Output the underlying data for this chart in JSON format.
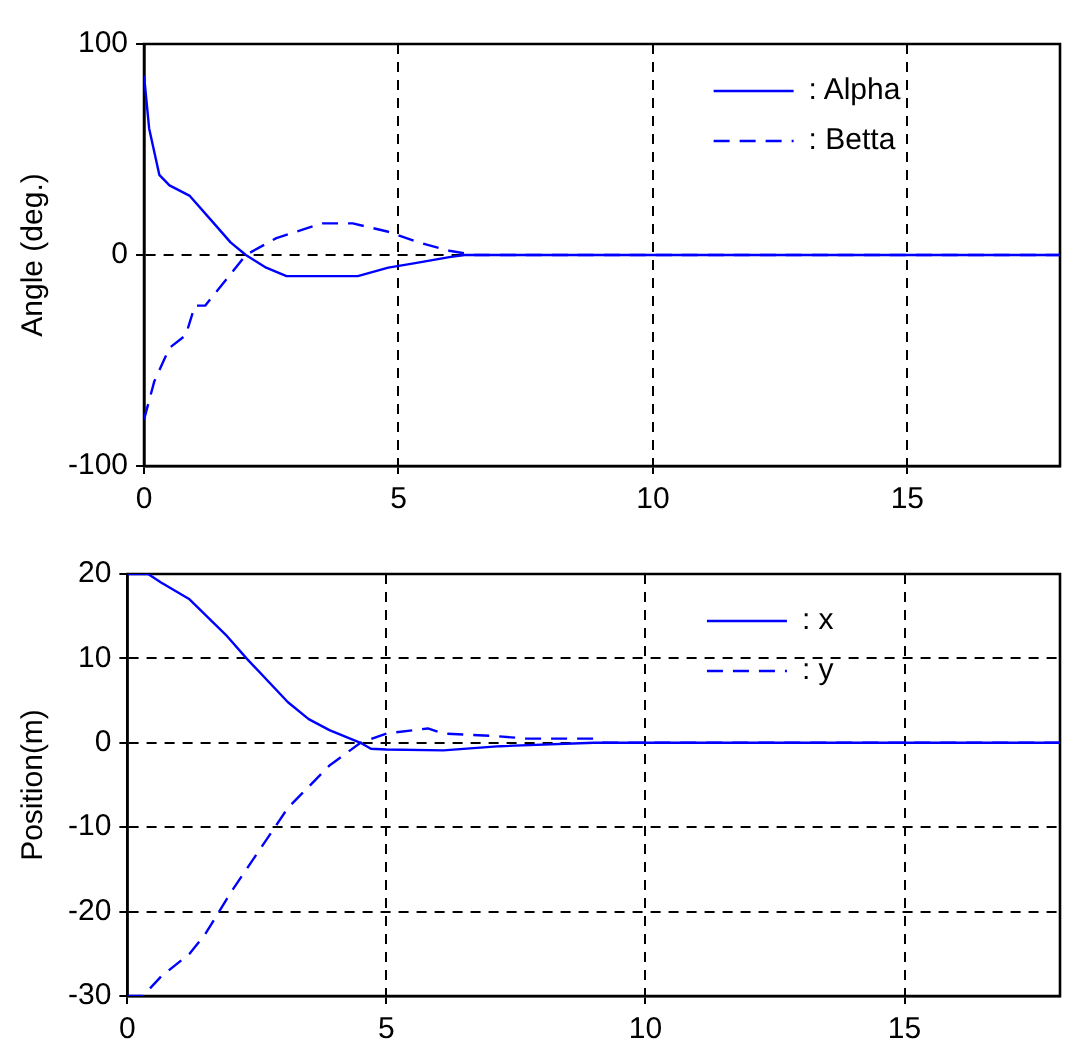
{
  "chart_data": [
    {
      "type": "line",
      "ylabel": "Angle (deg.)",
      "xlim": [
        0,
        18
      ],
      "xticks": [
        0,
        5,
        10,
        15
      ],
      "ylim": [
        -100,
        100
      ],
      "yticks": [
        -100,
        0,
        100
      ],
      "grid": true,
      "legend": "top right",
      "marker": "none",
      "series": [
        {
          "name": ": Alpha",
          "color": "#0000ff",
          "line_style": "solid",
          "x": [
            0,
            0.1,
            0.3,
            0.5,
            0.9,
            1.3,
            1.7,
            2,
            2.4,
            2.8,
            4.2,
            4.8,
            5.3,
            6,
            6.3,
            18
          ],
          "values": [
            85,
            60,
            38,
            33,
            28,
            17,
            6,
            0,
            -6,
            -10,
            -10,
            -6,
            -4,
            -1,
            0,
            0
          ]
        },
        {
          "name": ": Betta",
          "color": "#0000ff",
          "line_style": "dashed",
          "x": [
            0,
            0.2,
            0.5,
            0.82,
            1,
            1.2,
            1.67,
            2,
            2.6,
            3.5,
            4.1,
            4.8,
            5.4,
            6,
            6.5,
            18
          ],
          "values": [
            -78,
            -60,
            -44,
            -38,
            -24,
            -24,
            -10,
            0,
            8,
            15,
            15,
            11,
            6,
            2,
            0,
            0
          ]
        }
      ]
    },
    {
      "type": "line",
      "ylabel": "Position(m)",
      "xlim": [
        0,
        18
      ],
      "xticks": [
        0,
        5,
        10,
        15
      ],
      "ylim": [
        -30,
        20
      ],
      "yticks": [
        -30,
        -20,
        -10,
        0,
        10,
        20
      ],
      "grid": true,
      "legend": "top right",
      "marker": "none",
      "series": [
        {
          "name": ": x",
          "color": "#0000ff",
          "line_style": "solid",
          "x": [
            0,
            0.4,
            0.65,
            1.2,
            1.9,
            2.3,
            3.1,
            3.5,
            3.9,
            4.5,
            4.7,
            5,
            6.1,
            7.2,
            9,
            18
          ],
          "values": [
            20,
            20,
            19,
            17,
            12.8,
            10,
            4.8,
            2.8,
            1.5,
            0,
            -0.7,
            -0.8,
            -0.9,
            -0.4,
            0,
            0
          ]
        },
        {
          "name": ": y",
          "color": "#0000ff",
          "line_style": "dashed",
          "x": [
            0,
            0.3,
            0.65,
            1.2,
            1.5,
            2,
            2.55,
            3.1,
            3.5,
            3.9,
            4.5,
            5,
            5.8,
            6.1,
            7.1,
            7.7,
            9,
            9.2,
            18
          ],
          "values": [
            -30,
            -30,
            -27.7,
            -25,
            -22.7,
            -17.7,
            -12.7,
            -7.7,
            -5.2,
            -2.7,
            0,
            1.1,
            1.7,
            1.1,
            0.8,
            0.5,
            0.5,
            0,
            0
          ]
        }
      ]
    }
  ]
}
